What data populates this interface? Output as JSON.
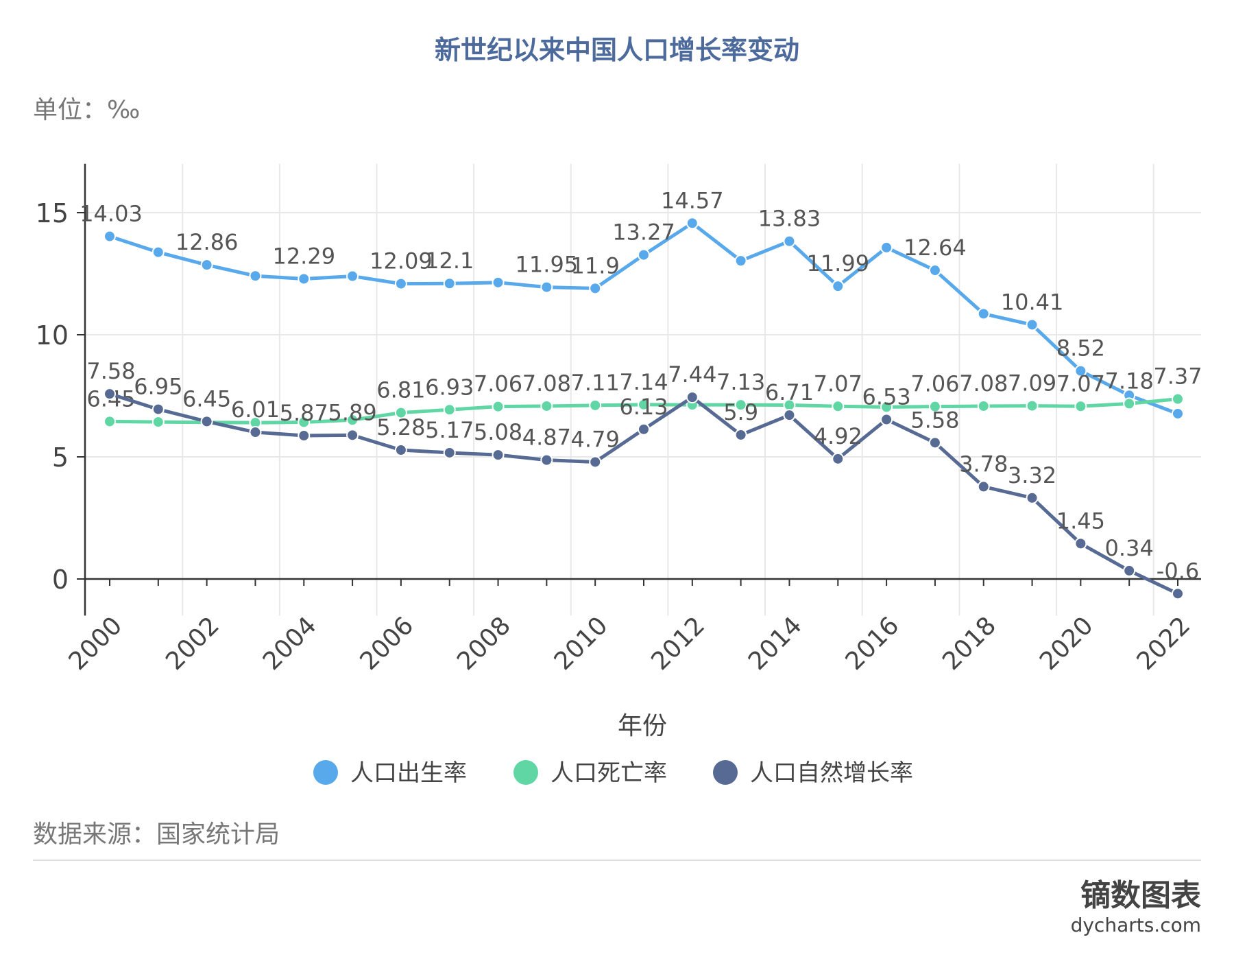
{
  "chart_data": {
    "type": "line",
    "title": "新世纪以来中国人口增长率变动",
    "unit_label": "单位：‰",
    "xlabel": "年份",
    "source": "数据来源：国家统计局",
    "ylim": [
      -1.5,
      17
    ],
    "yticks": [
      0,
      5,
      10,
      15
    ],
    "grid": true,
    "legend_position": "bottom",
    "x": [
      2000,
      2001,
      2002,
      2003,
      2004,
      2005,
      2006,
      2007,
      2008,
      2009,
      2010,
      2011,
      2012,
      2013,
      2014,
      2015,
      2016,
      2017,
      2018,
      2019,
      2020,
      2021,
      2022
    ],
    "xtick_labels": [
      "2000",
      "2002",
      "2004",
      "2006",
      "2008",
      "2010",
      "2012",
      "2014",
      "2016",
      "2018",
      "2020",
      "2022"
    ],
    "series": [
      {
        "name": "人口出生率",
        "color": "#58a8ec",
        "values": [
          14.03,
          13.38,
          12.86,
          12.41,
          12.29,
          12.4,
          12.09,
          12.1,
          12.14,
          11.95,
          11.9,
          13.27,
          14.57,
          13.03,
          13.83,
          11.99,
          13.57,
          12.64,
          10.86,
          10.41,
          8.52,
          7.52,
          6.77
        ],
        "labeled": [
          0,
          2,
          4,
          6,
          7,
          9,
          10,
          11,
          12,
          14,
          15,
          17,
          19,
          20
        ]
      },
      {
        "name": "人口死亡率",
        "color": "#5fd6a4",
        "values": [
          6.45,
          6.43,
          6.41,
          6.4,
          6.42,
          6.51,
          6.81,
          6.93,
          7.06,
          7.08,
          7.11,
          7.14,
          7.13,
          7.13,
          7.12,
          7.07,
          7.04,
          7.06,
          7.08,
          7.09,
          7.07,
          7.18,
          7.37
        ],
        "labeled": [
          0,
          6,
          7,
          8,
          9,
          10,
          11,
          13,
          15,
          17,
          18,
          19,
          20,
          21,
          22
        ]
      },
      {
        "name": "人口自然增长率",
        "color": "#566a93",
        "values": [
          7.58,
          6.95,
          6.45,
          6.01,
          5.87,
          5.89,
          5.28,
          5.17,
          5.08,
          4.87,
          4.79,
          6.13,
          7.44,
          5.9,
          6.71,
          4.92,
          6.53,
          5.58,
          3.78,
          3.32,
          1.45,
          0.34,
          -0.6
        ],
        "labeled": [
          0,
          1,
          2,
          3,
          4,
          5,
          6,
          7,
          8,
          9,
          10,
          11,
          12,
          13,
          14,
          15,
          16,
          17,
          18,
          19,
          20,
          21,
          22
        ]
      }
    ]
  },
  "brand": {
    "name": "镝数图表",
    "url": "dycharts.com"
  }
}
